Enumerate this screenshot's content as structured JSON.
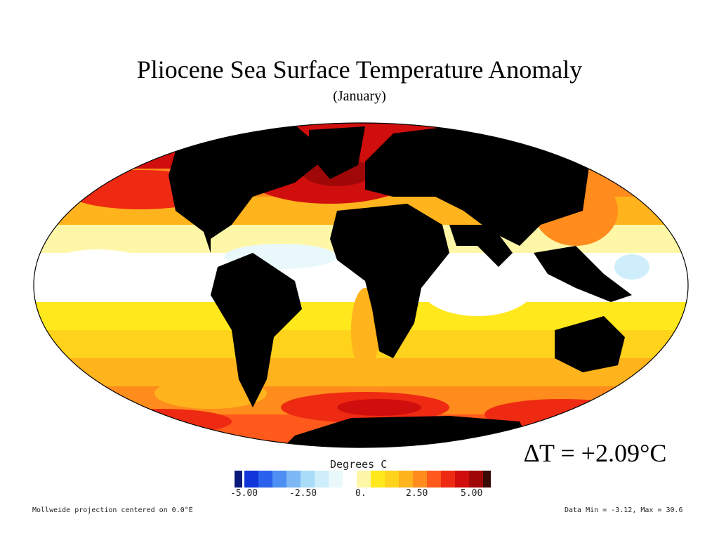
{
  "title": "Pliocene Sea Surface Temperature Anomaly",
  "subtitle": "(January)",
  "delta_label": "∆T = +2.09°C",
  "legend": {
    "title": "Degrees C",
    "ticks": [
      "-5.00",
      "-2.50",
      "0.",
      "2.50",
      "5.00"
    ],
    "colors": [
      "#0a1a7a",
      "#1035d8",
      "#2a62ee",
      "#4d8ff2",
      "#7db8f5",
      "#a9dcf8",
      "#cdeefa",
      "#e8f8fb",
      "#ffffff",
      "#fff7a8",
      "#ffe81c",
      "#ffd21c",
      "#ffb31c",
      "#ff8c1c",
      "#ff5a1c",
      "#ee2a12",
      "#d00e0e",
      "#a00808",
      "#3a0a06"
    ]
  },
  "footer": {
    "projection": "Mollweide projection centered on 0.0°E",
    "data_range": "Data Min = -3.12, Max = 30.6"
  }
}
